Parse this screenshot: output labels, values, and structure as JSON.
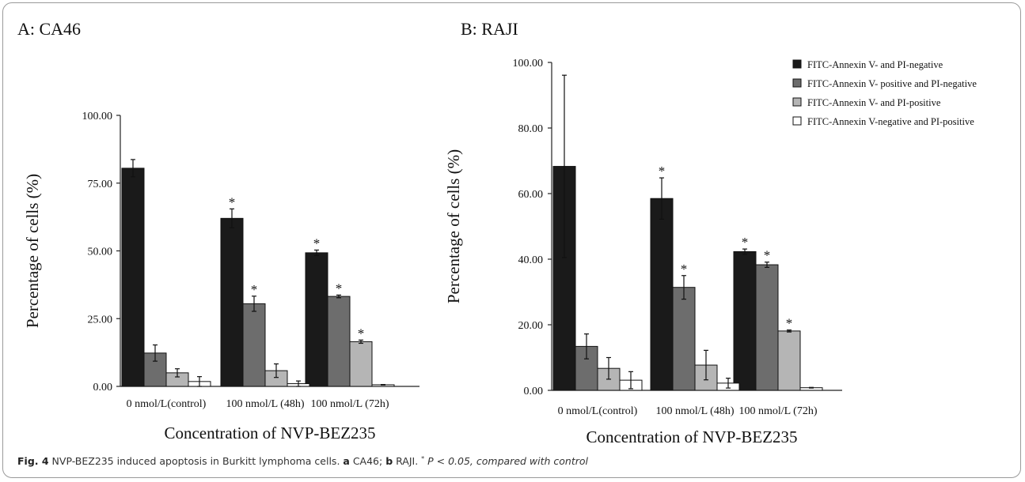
{
  "chart_data": [
    {
      "type": "bar",
      "title": "A: CA46",
      "xlabel": "Concentration of  NVP-BEZ235",
      "ylabel": "Percentage of cells (%)",
      "ylim": [
        0,
        100
      ],
      "yticks": [
        "0.00",
        "25.00",
        "50.00",
        "75.00",
        "100.00"
      ],
      "categories": [
        "0 nmol/L(control)",
        "100 nmol/L (48h)",
        "100 nmol/L (72h)"
      ],
      "series": [
        {
          "name": "FITC-Annexin V- and PI-negative",
          "color": "#1a1a1a",
          "values": [
            80.5,
            62.0,
            49.3
          ],
          "errors": [
            3.2,
            3.5,
            1.0
          ],
          "significant": [
            false,
            true,
            true
          ]
        },
        {
          "name": "FITC-Annexin V- positive and PI-negative",
          "color": "#6d6d6d",
          "values": [
            12.3,
            30.5,
            33.2
          ],
          "errors": [
            3.0,
            2.8,
            0.5
          ],
          "significant": [
            false,
            true,
            true
          ]
        },
        {
          "name": "FITC-Annexin V- and PI-positive",
          "color": "#b5b5b5",
          "values": [
            5.0,
            5.8,
            16.5
          ],
          "errors": [
            1.5,
            2.5,
            0.6
          ],
          "significant": [
            false,
            false,
            true
          ]
        },
        {
          "name": "FITC-Annexin V-negative and PI-positive",
          "color": "#ffffff",
          "values": [
            1.8,
            1.0,
            0.6
          ],
          "errors": [
            1.8,
            1.0,
            0.1
          ],
          "significant": [
            false,
            false,
            false
          ]
        }
      ]
    },
    {
      "type": "bar",
      "title": "B: RAJI",
      "xlabel": "Concentration of  NVP-BEZ235",
      "ylabel": "Percentage of cells (%)",
      "ylim": [
        0,
        100
      ],
      "yticks": [
        "0.00",
        "20.00",
        "40.00",
        "60.00",
        "80.00",
        "100.00"
      ],
      "categories": [
        "0 nmol/L(control)",
        "100 nmol/L (48h)",
        "100 nmol/L (72h)"
      ],
      "legend_position": "top-right",
      "series": [
        {
          "name": "FITC-Annexin V- and PI-negative",
          "color": "#1a1a1a",
          "values": [
            68.3,
            58.5,
            42.3
          ],
          "errors": [
            27.8,
            6.3,
            0.8
          ],
          "significant": [
            false,
            true,
            true
          ]
        },
        {
          "name": "FITC-Annexin V- positive and PI-negative",
          "color": "#6d6d6d",
          "values": [
            13.4,
            31.4,
            38.3
          ],
          "errors": [
            3.8,
            3.6,
            0.8
          ],
          "significant": [
            false,
            true,
            true
          ]
        },
        {
          "name": "FITC-Annexin V- and PI-positive",
          "color": "#b5b5b5",
          "values": [
            6.7,
            7.7,
            18.1
          ],
          "errors": [
            3.3,
            4.5,
            0.3
          ],
          "significant": [
            false,
            false,
            true
          ]
        },
        {
          "name": "FITC-Annexin V-negative and PI-positive",
          "color": "#ffffff",
          "values": [
            3.1,
            2.2,
            0.8
          ],
          "errors": [
            2.6,
            1.5,
            0.1
          ],
          "significant": [
            false,
            false,
            false
          ]
        }
      ]
    }
  ],
  "caption": {
    "label": "Fig. 4",
    "text": " NVP-BEZ235 induced apoptosis in Burkitt lymphoma cells. ",
    "a_letter": "a",
    "a_text": " CA46; ",
    "b_letter": "b",
    "b_text": " RAJI. ",
    "star": "*",
    "p_text": " P < 0.05, compared with control"
  }
}
